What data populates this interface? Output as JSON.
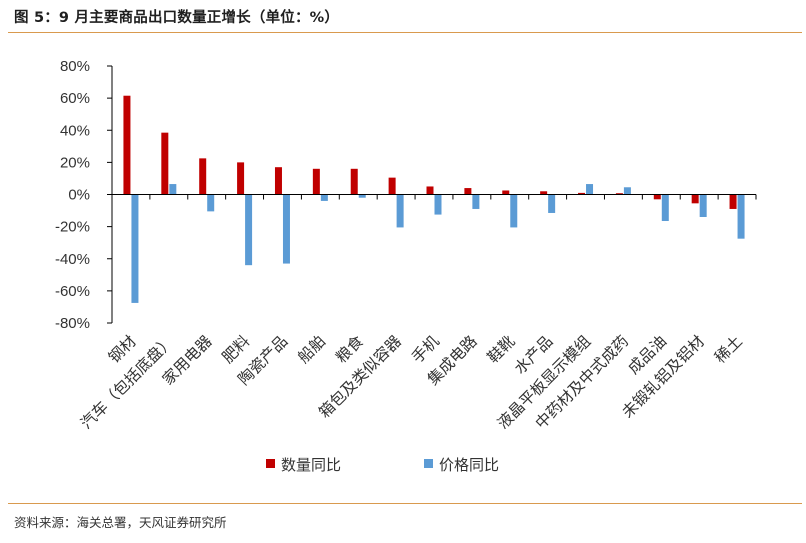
{
  "header": {
    "title": "图 5：9 月主要商品出口数量正增长（单位：%）"
  },
  "footer": {
    "source": "资料来源：海关总署，天风证券研究所"
  },
  "colors": {
    "series_quantity": "#c00000",
    "series_price": "#5b9bd5",
    "rule": "#d99a4e"
  },
  "chart_data": {
    "type": "bar",
    "title": "",
    "xlabel": "",
    "ylabel": "",
    "ylim": [
      -80,
      80
    ],
    "yticks": [
      "80%",
      "60%",
      "40%",
      "20%",
      "0%",
      "-20%",
      "-40%",
      "-60%",
      "-80%"
    ],
    "ytick_values": [
      80,
      60,
      40,
      20,
      0,
      -20,
      -40,
      -60,
      -80
    ],
    "grid": false,
    "legend_position": "bottom",
    "categories": [
      "钢材",
      "汽车（包括底盘）",
      "家用电器",
      "肥料",
      "陶瓷产品",
      "船舶",
      "粮食",
      "箱包及类似容器",
      "手机",
      "集成电路",
      "鞋靴",
      "水产品",
      "液晶平板显示模组",
      "中药材及中式成药",
      "成品油",
      "未锻轧铝及铝材",
      "稀土"
    ],
    "series": [
      {
        "name": "数量同比",
        "values": [
          61.5,
          38.5,
          22.5,
          20,
          17,
          16,
          16,
          10.5,
          5,
          4,
          2.5,
          2,
          1,
          0.8,
          -3,
          -5.5,
          -9
        ]
      },
      {
        "name": "价格同比",
        "values": [
          -67.5,
          6.5,
          -10.5,
          -44,
          -43,
          -4,
          -2,
          -20.5,
          -12.5,
          -9,
          -20.5,
          -11.5,
          6.5,
          4.5,
          -16.5,
          -14,
          -27.5
        ]
      }
    ]
  }
}
